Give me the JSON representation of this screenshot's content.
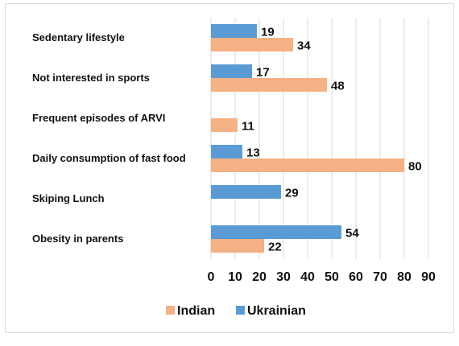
{
  "chart_data": {
    "type": "bar",
    "orientation": "horizontal",
    "categories": [
      "Sedentary lifestyle",
      "Not interested in sports",
      "Frequent episodes of ARVI",
      "Daily consumption of fast food",
      "Skiping Lunch",
      "Obesity in parents"
    ],
    "series": [
      {
        "name": "Ukrainian",
        "color": "#5b9bd5",
        "values": [
          19,
          17,
          null,
          13,
          29,
          54
        ]
      },
      {
        "name": "Indian",
        "color": "#f4b183",
        "values": [
          34,
          48,
          11,
          80,
          null,
          22
        ]
      }
    ],
    "x_ticks": [
      "0",
      "10",
      "20",
      "30",
      "40",
      "50",
      "60",
      "70",
      "80",
      "90"
    ],
    "xlim": [
      0,
      90
    ],
    "grid": true,
    "legend": {
      "placement": "bottom",
      "entries": [
        {
          "name": "Indian",
          "color": "#f4b183"
        },
        {
          "name": "Ukrainian",
          "color": "#5b9bd5"
        }
      ]
    }
  }
}
